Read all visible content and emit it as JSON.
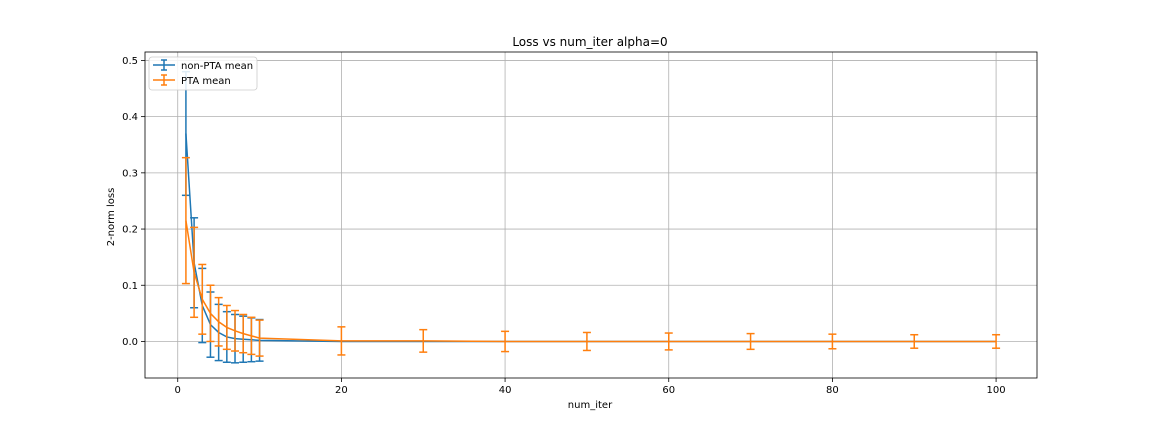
{
  "chart_data": {
    "type": "line",
    "title": "Loss vs num_iter alpha=0",
    "xlabel": "num_iter",
    "ylabel": "2-norm loss",
    "xlim": [
      -4,
      105
    ],
    "ylim": [
      -0.065,
      0.515
    ],
    "xticks": [
      0,
      20,
      40,
      60,
      80,
      100
    ],
    "yticks": [
      0.0,
      0.1,
      0.2,
      0.3,
      0.4,
      0.5
    ],
    "xtick_labels": [
      "0",
      "20",
      "40",
      "60",
      "80",
      "100"
    ],
    "ytick_labels": [
      "0.0",
      "0.1",
      "0.2",
      "0.3",
      "0.4",
      "0.5"
    ],
    "grid": true,
    "legend_position": "top-left",
    "x": [
      1,
      2,
      3,
      4,
      5,
      6,
      7,
      8,
      9,
      10,
      20,
      30,
      40,
      50,
      60,
      70,
      80,
      90,
      100
    ],
    "series": [
      {
        "name": "non-PTA mean",
        "color": "#1f77b4",
        "values": [
          0.37,
          0.14,
          0.064,
          0.03,
          0.016,
          0.008,
          0.005,
          0.004,
          0.003,
          0.002,
          0.0,
          0.0,
          0.0,
          0.0,
          0.0,
          0.0,
          0.0,
          0.0,
          0.0
        ],
        "errors": [
          0.11,
          0.08,
          0.066,
          0.058,
          0.05,
          0.045,
          0.043,
          0.041,
          0.039,
          0.037,
          0.0,
          0.0,
          0.0,
          0.0,
          0.0,
          0.0,
          0.0,
          0.0,
          0.0
        ]
      },
      {
        "name": "PTA mean",
        "color": "#ff7f0e",
        "values": [
          0.215,
          0.123,
          0.075,
          0.05,
          0.035,
          0.025,
          0.019,
          0.014,
          0.01,
          0.006,
          0.001,
          0.001,
          0.0,
          0.0,
          0.0,
          0.0,
          0.0,
          0.0,
          0.0
        ],
        "errors": [
          0.112,
          0.08,
          0.062,
          0.05,
          0.043,
          0.039,
          0.036,
          0.034,
          0.033,
          0.032,
          0.025,
          0.02,
          0.018,
          0.016,
          0.015,
          0.014,
          0.013,
          0.012,
          0.012
        ]
      }
    ]
  }
}
